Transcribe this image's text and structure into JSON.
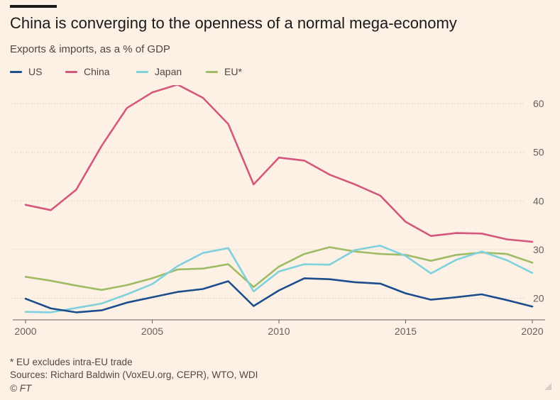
{
  "title": "China is converging to the openness of a normal mega-economy",
  "subtitle": "Exports & imports, as a % of GDP",
  "footnote": "* EU excludes intra-EU trade",
  "sources": "Sources: Richard Baldwin (VoxEU.org, CEPR), WTO, WDI",
  "copyright": "© FT",
  "chart_data": {
    "type": "line",
    "x": [
      2000,
      2001,
      2002,
      2003,
      2004,
      2005,
      2006,
      2007,
      2008,
      2009,
      2010,
      2011,
      2012,
      2013,
      2014,
      2015,
      2016,
      2017,
      2018,
      2019,
      2020
    ],
    "series": [
      {
        "name": "US",
        "color": "#1c4d8c",
        "values": [
          19.9,
          17.9,
          17.1,
          17.5,
          19.1,
          20.2,
          21.3,
          21.9,
          23.5,
          18.4,
          21.6,
          24.1,
          23.9,
          23.3,
          23.0,
          21.0,
          19.7,
          20.2,
          20.8,
          19.6,
          18.3
        ]
      },
      {
        "name": "China",
        "color": "#d4577d",
        "values": [
          39.2,
          38.1,
          42.3,
          51.3,
          59.1,
          62.3,
          63.9,
          61.2,
          55.8,
          43.4,
          48.9,
          48.3,
          45.4,
          43.4,
          41.1,
          35.7,
          32.8,
          33.4,
          33.3,
          32.1,
          31.6
        ]
      },
      {
        "name": "Japan",
        "color": "#7fd1dd",
        "values": [
          17.2,
          17.1,
          18.0,
          18.9,
          20.8,
          22.9,
          26.6,
          29.3,
          30.3,
          21.4,
          25.5,
          27.0,
          26.9,
          29.9,
          30.8,
          28.7,
          25.1,
          27.9,
          29.6,
          27.8,
          25.2
        ]
      },
      {
        "name": "EU*",
        "color": "#9fbb63",
        "values": [
          24.4,
          23.6,
          22.6,
          21.7,
          22.7,
          24.1,
          25.9,
          26.1,
          27.0,
          22.3,
          26.5,
          29.1,
          30.5,
          29.6,
          29.1,
          28.9,
          27.7,
          28.9,
          29.4,
          29.1,
          27.3
        ]
      }
    ],
    "ylim": [
      15,
      65
    ],
    "y_ticks": [
      20,
      30,
      40,
      50,
      60
    ],
    "x_ticks": [
      2000,
      2005,
      2010,
      2015,
      2020
    ],
    "grid": true,
    "legend": "top-left"
  }
}
